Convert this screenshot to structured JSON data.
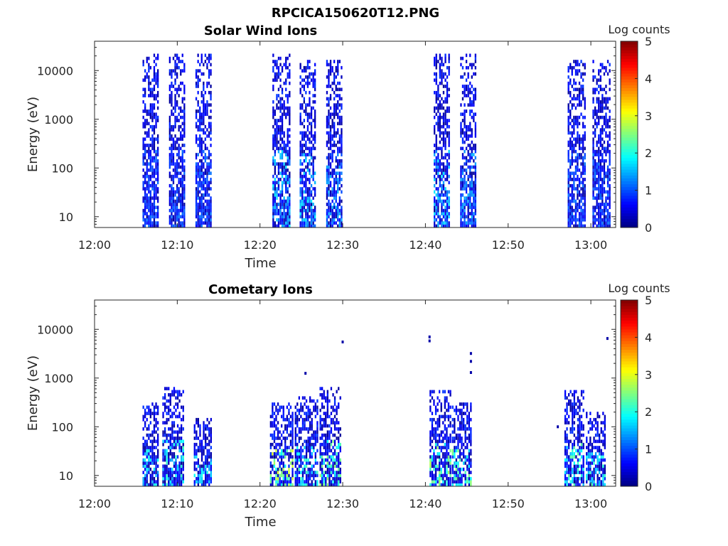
{
  "figure": {
    "suptitle": "RPCICA150620T12.PNG"
  },
  "chart_data": [
    {
      "type": "heatmap",
      "title": "Solar Wind Ions",
      "xlabel": "Time",
      "ylabel": "Energy (eV)",
      "x_ticks": [
        "12:00",
        "12:10",
        "12:20",
        "12:30",
        "12:40",
        "12:50",
        "13:00"
      ],
      "y_ticks": [
        "10",
        "100",
        "1000",
        "10000"
      ],
      "y_scale": "log",
      "xlim": [
        "12:00",
        "13:03"
      ],
      "ylim": [
        6,
        40000
      ],
      "colorbar": {
        "label": "Log counts",
        "min": 0,
        "max": 5,
        "ticks": [
          "0",
          "1",
          "2",
          "3",
          "4",
          "5"
        ],
        "colormap": "jet"
      },
      "bursts": [
        {
          "start_min": 5.8,
          "end_min": 7.6,
          "e_min_ev": 6,
          "e_max_ev": 20000,
          "peak_log_counts": 1.2
        },
        {
          "start_min": 9.0,
          "end_min": 10.8,
          "e_min_ev": 6,
          "e_max_ev": 20000,
          "peak_log_counts": 1.2
        },
        {
          "start_min": 12.2,
          "end_min": 14.0,
          "e_min_ev": 6,
          "e_max_ev": 20000,
          "peak_log_counts": 1.2
        },
        {
          "start_min": 21.5,
          "end_min": 23.6,
          "e_min_ev": 6,
          "e_max_ev": 20000,
          "peak_log_counts": 1.8
        },
        {
          "start_min": 24.8,
          "end_min": 26.6,
          "e_min_ev": 6,
          "e_max_ev": 15000,
          "peak_log_counts": 1.8
        },
        {
          "start_min": 28.0,
          "end_min": 29.8,
          "e_min_ev": 6,
          "e_max_ev": 15000,
          "peak_log_counts": 1.5
        },
        {
          "start_min": 41.0,
          "end_min": 42.8,
          "e_min_ev": 6,
          "e_max_ev": 20000,
          "peak_log_counts": 1.8
        },
        {
          "start_min": 44.2,
          "end_min": 46.0,
          "e_min_ev": 6,
          "e_max_ev": 20000,
          "peak_log_counts": 1.5
        },
        {
          "start_min": 57.2,
          "end_min": 59.2,
          "e_min_ev": 6,
          "e_max_ev": 15000,
          "peak_log_counts": 1.2
        },
        {
          "start_min": 60.2,
          "end_min": 62.2,
          "e_min_ev": 6,
          "e_max_ev": 15000,
          "peak_log_counts": 1.2
        }
      ]
    },
    {
      "type": "heatmap",
      "title": "Cometary Ions",
      "xlabel": "Time",
      "ylabel": "Energy (eV)",
      "x_ticks": [
        "12:00",
        "12:10",
        "12:20",
        "12:30",
        "12:40",
        "12:50",
        "13:00"
      ],
      "y_ticks": [
        "10",
        "100",
        "1000",
        "10000"
      ],
      "y_scale": "log",
      "xlim": [
        "12:00",
        "13:03"
      ],
      "ylim": [
        6,
        40000
      ],
      "colorbar": {
        "label": "Log counts",
        "min": 0,
        "max": 5,
        "ticks": [
          "0",
          "1",
          "2",
          "3",
          "4",
          "5"
        ],
        "colormap": "jet"
      },
      "bursts": [
        {
          "start_min": 5.8,
          "end_min": 7.6,
          "e_min_ev": 6,
          "e_max_ev": 300,
          "peak_log_counts": 2.0
        },
        {
          "start_min": 8.2,
          "end_min": 10.8,
          "e_min_ev": 6,
          "e_max_ev": 600,
          "peak_log_counts": 2.2
        },
        {
          "start_min": 12.0,
          "end_min": 14.2,
          "e_min_ev": 6,
          "e_max_ev": 150,
          "peak_log_counts": 2.0
        },
        {
          "start_min": 21.2,
          "end_min": 24.0,
          "e_min_ev": 6,
          "e_max_ev": 300,
          "peak_log_counts": 3.0
        },
        {
          "start_min": 24.2,
          "end_min": 27.0,
          "e_min_ev": 6,
          "e_max_ev": 400,
          "peak_log_counts": 2.3
        },
        {
          "start_min": 27.2,
          "end_min": 29.8,
          "e_min_ev": 6,
          "e_max_ev": 600,
          "peak_log_counts": 2.6
        },
        {
          "start_min": 40.5,
          "end_min": 43.0,
          "e_min_ev": 6,
          "e_max_ev": 500,
          "peak_log_counts": 2.8
        },
        {
          "start_min": 43.2,
          "end_min": 45.5,
          "e_min_ev": 6,
          "e_max_ev": 300,
          "peak_log_counts": 2.6
        },
        {
          "start_min": 56.8,
          "end_min": 59.2,
          "e_min_ev": 6,
          "e_max_ev": 500,
          "peak_log_counts": 2.4
        },
        {
          "start_min": 59.4,
          "end_min": 61.8,
          "e_min_ev": 6,
          "e_max_ev": 200,
          "peak_log_counts": 2.2
        }
      ],
      "isolated_points": [
        {
          "t_min": 30.0,
          "e_ev": 5500
        },
        {
          "t_min": 40.5,
          "e_ev": 7000
        },
        {
          "t_min": 40.5,
          "e_ev": 5800
        },
        {
          "t_min": 45.5,
          "e_ev": 3200
        },
        {
          "t_min": 45.5,
          "e_ev": 2200
        },
        {
          "t_min": 45.5,
          "e_ev": 1300
        },
        {
          "t_min": 25.5,
          "e_ev": 1250
        },
        {
          "t_min": 62.0,
          "e_ev": 6500
        },
        {
          "t_min": 56.0,
          "e_ev": 100
        }
      ]
    }
  ]
}
